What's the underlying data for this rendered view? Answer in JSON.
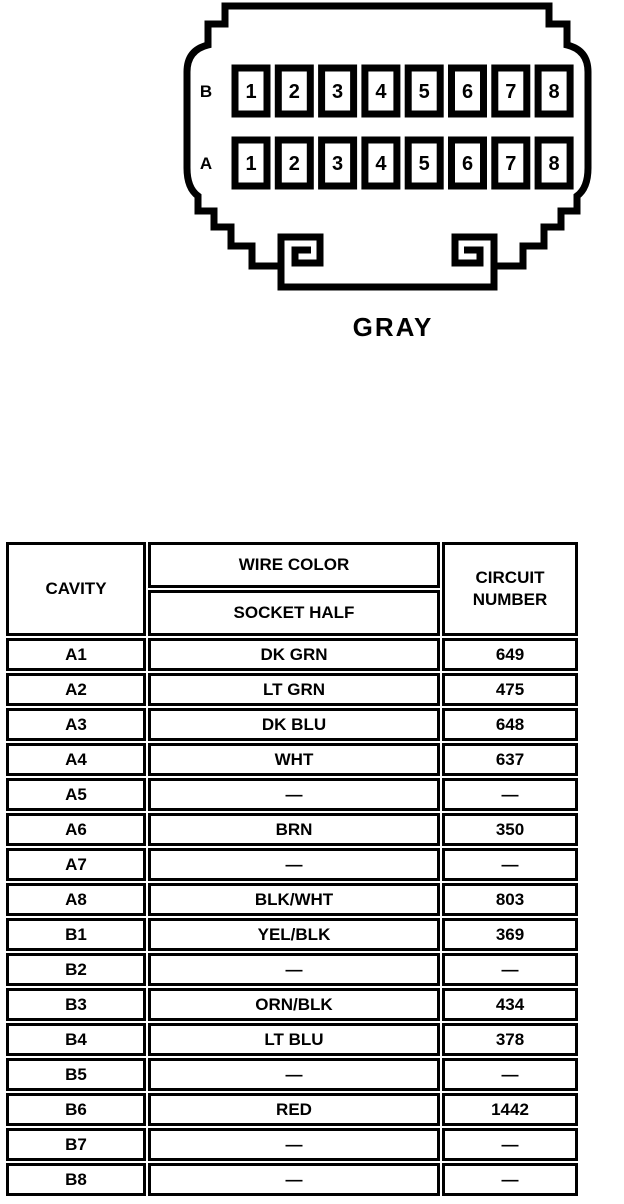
{
  "colors": {
    "ink": "#000000",
    "paper": "#ffffff"
  },
  "diagram": {
    "connector_label": "GRAY",
    "pin_rows": [
      {
        "row_label": "B",
        "pins": [
          "1",
          "2",
          "3",
          "4",
          "5",
          "6",
          "7",
          "8"
        ]
      },
      {
        "row_label": "A",
        "pins": [
          "1",
          "2",
          "3",
          "4",
          "5",
          "6",
          "7",
          "8"
        ]
      }
    ]
  },
  "table": {
    "headers": {
      "cavity": "CAVITY",
      "wire_color": "WIRE COLOR",
      "socket_half": "SOCKET HALF",
      "circuit_number": "CIRCUIT NUMBER"
    },
    "rows": [
      {
        "cavity": "A1",
        "wire_color": "DK GRN",
        "circuit": "649"
      },
      {
        "cavity": "A2",
        "wire_color": "LT GRN",
        "circuit": "475"
      },
      {
        "cavity": "A3",
        "wire_color": "DK BLU",
        "circuit": "648"
      },
      {
        "cavity": "A4",
        "wire_color": "WHT",
        "circuit": "637"
      },
      {
        "cavity": "A5",
        "wire_color": "—",
        "circuit": "—"
      },
      {
        "cavity": "A6",
        "wire_color": "BRN",
        "circuit": "350"
      },
      {
        "cavity": "A7",
        "wire_color": "—",
        "circuit": "—"
      },
      {
        "cavity": "A8",
        "wire_color": "BLK/WHT",
        "circuit": "803"
      },
      {
        "cavity": "B1",
        "wire_color": "YEL/BLK",
        "circuit": "369"
      },
      {
        "cavity": "B2",
        "wire_color": "—",
        "circuit": "—"
      },
      {
        "cavity": "B3",
        "wire_color": "ORN/BLK",
        "circuit": "434"
      },
      {
        "cavity": "B4",
        "wire_color": "LT BLU",
        "circuit": "378"
      },
      {
        "cavity": "B5",
        "wire_color": "—",
        "circuit": "—"
      },
      {
        "cavity": "B6",
        "wire_color": "RED",
        "circuit": "1442"
      },
      {
        "cavity": "B7",
        "wire_color": "—",
        "circuit": "—"
      },
      {
        "cavity": "B8",
        "wire_color": "—",
        "circuit": "—"
      }
    ]
  }
}
